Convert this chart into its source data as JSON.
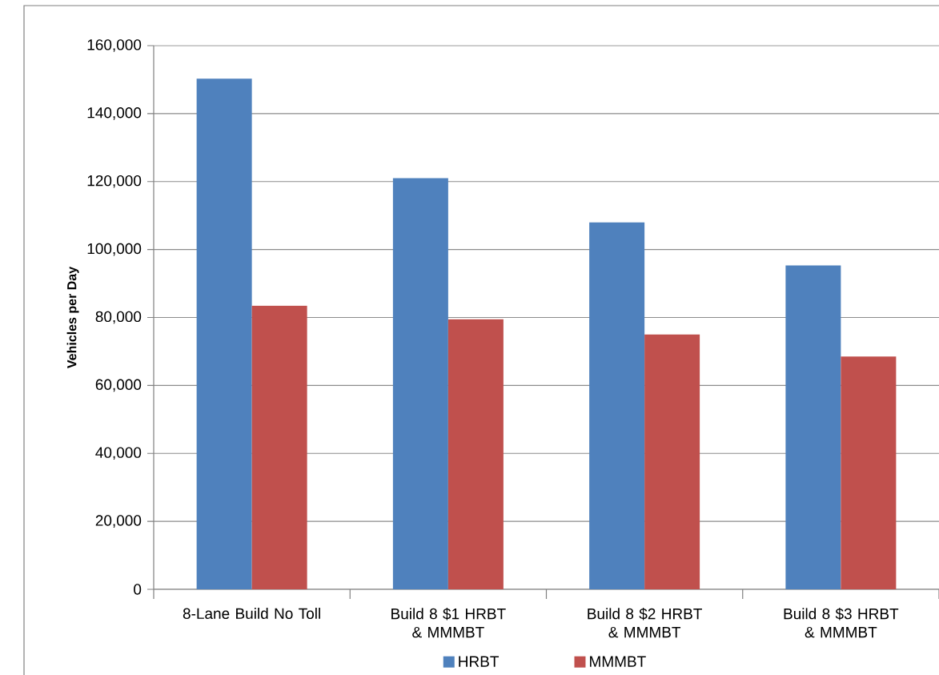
{
  "chart_data": {
    "type": "bar",
    "ylabel": "Vehicles per Day",
    "categories": [
      "8-Lane Build No Toll",
      "Build 8 $1 HRBT & MMMBT",
      "Build 8 $2 HRBT & MMMBT",
      "Build 8 $3 HRBT & MMMBT"
    ],
    "series": [
      {
        "name": "HRBT",
        "color": "#4f81bd",
        "values": [
          150300,
          121000,
          108000,
          95300
        ]
      },
      {
        "name": "MMMBT",
        "color": "#c0504d",
        "values": [
          83500,
          79500,
          75000,
          68500
        ]
      }
    ],
    "ylim": [
      0,
      160000
    ],
    "yticks": [
      {
        "value": 0,
        "label": "0"
      },
      {
        "value": 20000,
        "label": "20,000"
      },
      {
        "value": 40000,
        "label": "40,000"
      },
      {
        "value": 60000,
        "label": "60,000"
      },
      {
        "value": 80000,
        "label": "80,000"
      },
      {
        "value": 100000,
        "label": "100,000"
      },
      {
        "value": 120000,
        "label": "120,000"
      },
      {
        "value": 140000,
        "label": "140,000"
      },
      {
        "value": 160000,
        "label": "160,000"
      }
    ],
    "grid": "y",
    "legend": "bottom"
  }
}
